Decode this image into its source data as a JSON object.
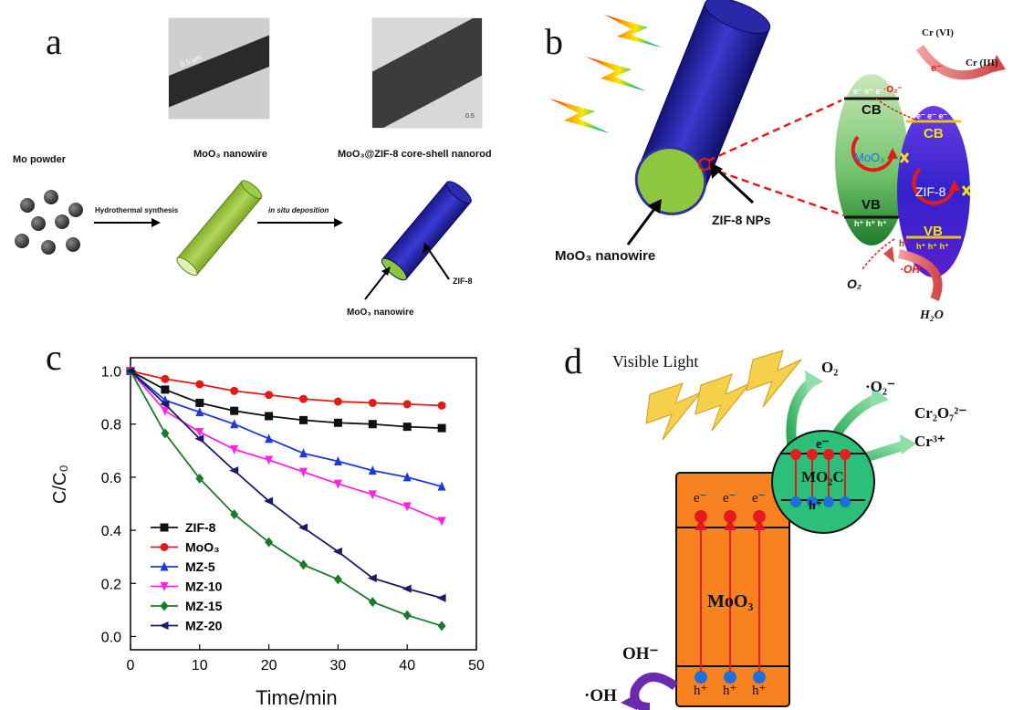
{
  "panels": {
    "a": {
      "letter": "a",
      "mo_powder": "Mo powder",
      "hydrothermal": "Hydrothermal synthesis",
      "in_situ_deposition": "in situ deposition",
      "moo3_nanowire_label": "MoO₃ nanowire",
      "core_shell_label": "MoO₃@ZIF-8 core-shell nanorod",
      "zif8": "ZIF-8",
      "moo3_nanowire_arrow": "MoO₃ nanowire",
      "scale1": "0.5 μm",
      "scale2": "0.5"
    },
    "b": {
      "letter": "b",
      "moo3_nanowire": "MoO₃ nanowire",
      "zif8_nps": "ZIF-8 NPs",
      "cr6": "Cr (VI)",
      "cr3": "Cr (III)",
      "e_minus": "e⁻",
      "o2_radical": "·O₂⁻",
      "cb": "CB",
      "vb": "VB",
      "electrons": "e⁻ e⁻ e⁻",
      "holes": "h⁺ h⁺ h⁺",
      "moo3": "MoO₃",
      "zif8": "ZIF-8",
      "h_plus": "h⁺",
      "oh_radical": "·OH",
      "o2": "O₂",
      "h2o": "H₂O"
    },
    "d": {
      "letter": "d",
      "visible_light": "Visible Light",
      "o2": "O₂",
      "o2_radical": "·O₂⁻",
      "cr2o7": "Cr₂O₇²⁻",
      "cr3": "Cr³⁺",
      "mo2c": "MO₂C",
      "e_minus_c": "e⁻",
      "h_plus_c": "h⁺",
      "moo3": "MoO₃",
      "oh_minus": "OH⁻",
      "oh_radical": "·OH",
      "e_label": "e⁻",
      "h_label": "h⁺"
    }
  },
  "chart_data": {
    "type": "line",
    "panel_letter": "c",
    "xlabel": "Time/min",
    "ylabel": "C/C₀",
    "xlim": [
      0,
      50
    ],
    "ylim": [
      -0.05,
      1.05
    ],
    "xticks": [
      0,
      10,
      20,
      30,
      40,
      50
    ],
    "yticks": [
      0.0,
      0.2,
      0.4,
      0.6,
      0.8,
      1.0
    ],
    "x": [
      0,
      5,
      10,
      15,
      20,
      25,
      30,
      35,
      40,
      45
    ],
    "legend_position": "bottom-left",
    "series": [
      {
        "name": "ZIF-8",
        "color": "#111111",
        "marker": "square",
        "values": [
          1.0,
          0.93,
          0.88,
          0.85,
          0.83,
          0.815,
          0.805,
          0.8,
          0.79,
          0.785
        ]
      },
      {
        "name": "MoO₃",
        "color": "#e21a1a",
        "marker": "circle",
        "values": [
          1.0,
          0.97,
          0.95,
          0.925,
          0.91,
          0.895,
          0.885,
          0.88,
          0.875,
          0.87
        ]
      },
      {
        "name": "MZ-5",
        "color": "#1d3ad6",
        "marker": "triangle-up",
        "values": [
          1.0,
          0.89,
          0.845,
          0.8,
          0.745,
          0.69,
          0.66,
          0.625,
          0.6,
          0.565
        ]
      },
      {
        "name": "MZ-10",
        "color": "#ff24e2",
        "marker": "triangle-down",
        "values": [
          1.0,
          0.85,
          0.77,
          0.705,
          0.665,
          0.62,
          0.575,
          0.535,
          0.49,
          0.435
        ]
      },
      {
        "name": "MZ-15",
        "color": "#1c7a2a",
        "marker": "diamond",
        "values": [
          1.0,
          0.765,
          0.595,
          0.46,
          0.355,
          0.27,
          0.215,
          0.13,
          0.08,
          0.04
        ]
      },
      {
        "name": "MZ-20",
        "color": "#1a1a66",
        "marker": "left-triangle",
        "values": [
          1.0,
          0.875,
          0.745,
          0.625,
          0.51,
          0.41,
          0.32,
          0.22,
          0.18,
          0.145
        ]
      }
    ]
  }
}
